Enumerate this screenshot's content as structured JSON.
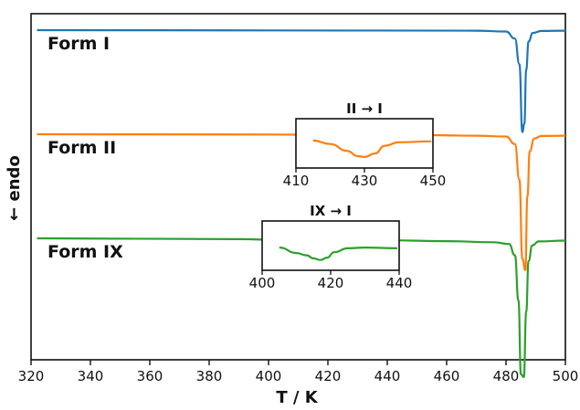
{
  "chart_data": {
    "type": "line",
    "xlabel": "T / K",
    "ylabel": "← endo",
    "xlim": [
      320,
      500
    ],
    "x_ticks": [
      "320",
      "340",
      "360",
      "380",
      "400",
      "420",
      "440",
      "460",
      "480",
      "500"
    ],
    "grid": false,
    "series": [
      {
        "name": "Form I",
        "color": "#1f77b4",
        "x": [
          322,
          400,
          470,
          480,
          483,
          484.5,
          485.5,
          486.2,
          486.8,
          487.6,
          489,
          492,
          500
        ],
        "y": [
          0.0,
          -0.01,
          -0.02,
          -0.05,
          -0.3,
          -1.2,
          -3.6,
          -3.3,
          -1.4,
          -0.4,
          -0.1,
          -0.03,
          -0.02
        ]
      },
      {
        "name": "Form II",
        "color": "#ff7f0e",
        "x": [
          322,
          400,
          415,
          420,
          425,
          428,
          430,
          433,
          436,
          440,
          450,
          470,
          480,
          483,
          484.5,
          485.5,
          486.5,
          487.2,
          488,
          489.5,
          492,
          500
        ],
        "y": [
          0.0,
          -0.01,
          -0.02,
          -0.06,
          -0.14,
          -0.2,
          -0.21,
          -0.17,
          -0.08,
          -0.04,
          -0.03,
          -0.05,
          -0.08,
          -0.35,
          -1.6,
          -4.4,
          -4.8,
          -2.2,
          -0.6,
          -0.15,
          -0.06,
          -0.05
        ]
      },
      {
        "name": "Form IX",
        "color": "#2ca02c",
        "x": [
          322,
          390,
          405,
          410,
          413,
          415,
          417,
          419,
          421,
          425,
          430,
          440,
          460,
          476,
          481,
          483,
          484.2,
          485,
          486,
          486.8,
          487.6,
          488.8,
          491,
          500
        ],
        "y": [
          0.0,
          -0.03,
          -0.06,
          -0.13,
          -0.16,
          -0.2,
          -0.22,
          -0.19,
          -0.12,
          -0.07,
          -0.06,
          -0.07,
          -0.1,
          -0.14,
          -0.2,
          -0.6,
          -2.2,
          -4.8,
          -4.9,
          -2.6,
          -0.8,
          -0.25,
          -0.11,
          -0.08
        ]
      }
    ],
    "insets": [
      {
        "title": "II → I",
        "series": "Form II",
        "xlim": [
          410,
          450
        ],
        "x_ticks": [
          "410",
          "430",
          "450"
        ]
      },
      {
        "title": "IX → I",
        "series": "Form IX",
        "xlim": [
          400,
          440
        ],
        "x_ticks": [
          "400",
          "420",
          "440"
        ]
      }
    ]
  }
}
